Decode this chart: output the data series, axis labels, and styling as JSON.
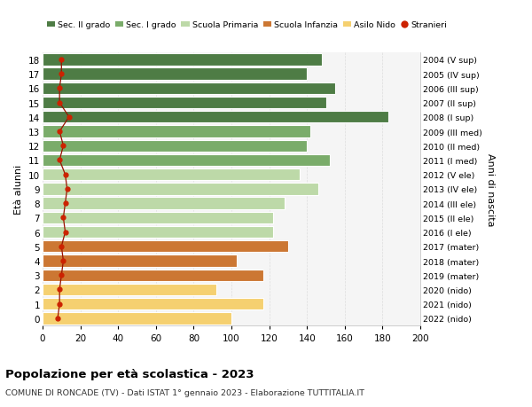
{
  "ages": [
    18,
    17,
    16,
    15,
    14,
    13,
    12,
    11,
    10,
    9,
    8,
    7,
    6,
    5,
    4,
    3,
    2,
    1,
    0
  ],
  "bar_values": [
    148,
    140,
    155,
    150,
    183,
    142,
    140,
    152,
    136,
    146,
    128,
    122,
    122,
    130,
    103,
    117,
    92,
    117,
    100
  ],
  "bar_colors": [
    "#4e7c45",
    "#4e7c45",
    "#4e7c45",
    "#4e7c45",
    "#4e7c45",
    "#7aac6a",
    "#7aac6a",
    "#7aac6a",
    "#bdd9a8",
    "#bdd9a8",
    "#bdd9a8",
    "#bdd9a8",
    "#bdd9a8",
    "#cc7733",
    "#cc7733",
    "#cc7733",
    "#f5d070",
    "#f5d070",
    "#f5d070"
  ],
  "stranieri_values": [
    10,
    10,
    9,
    9,
    14,
    9,
    11,
    9,
    12,
    13,
    12,
    11,
    12,
    10,
    11,
    10,
    9,
    9,
    8
  ],
  "right_labels": [
    "2004 (V sup)",
    "2005 (IV sup)",
    "2006 (III sup)",
    "2007 (II sup)",
    "2008 (I sup)",
    "2009 (III med)",
    "2010 (II med)",
    "2011 (I med)",
    "2012 (V ele)",
    "2013 (IV ele)",
    "2014 (III ele)",
    "2015 (II ele)",
    "2016 (I ele)",
    "2017 (mater)",
    "2018 (mater)",
    "2019 (mater)",
    "2020 (nido)",
    "2021 (nido)",
    "2022 (nido)"
  ],
  "legend_labels": [
    "Sec. II grado",
    "Sec. I grado",
    "Scuola Primaria",
    "Scuola Infanzia",
    "Asilo Nido",
    "Stranieri"
  ],
  "legend_colors": [
    "#4e7c45",
    "#7aac6a",
    "#bdd9a8",
    "#cc7733",
    "#f5d070",
    "#cc2200"
  ],
  "ylabel": "Età alunni",
  "right_ylabel": "Anni di nascita",
  "title": "Popolazione per età scolastica - 2023",
  "subtitle": "COMUNE DI RONCADE (TV) - Dati ISTAT 1° gennaio 2023 - Elaborazione TUTTITALIA.IT",
  "xlim": [
    0,
    200
  ],
  "xticks": [
    0,
    20,
    40,
    60,
    80,
    100,
    120,
    140,
    160,
    180,
    200
  ],
  "background_color": "#f5f5f5",
  "grid_color": "#dddddd"
}
